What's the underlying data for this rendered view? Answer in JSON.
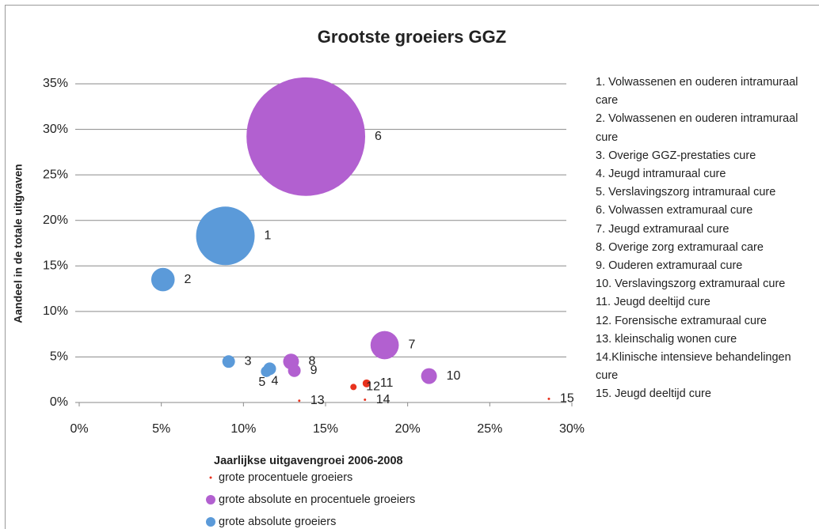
{
  "chart_data": {
    "type": "bubble",
    "title": "Grootste groeiers GGZ",
    "x_label": "Jaarlijkse uitgavengroei 2006-2008",
    "y_label": "Aandeel in de totale uitgvaven",
    "xlim": [
      0,
      30
    ],
    "ylim": [
      0,
      35
    ],
    "xticks": [
      {
        "value": 0,
        "label": "0%"
      },
      {
        "value": 5,
        "label": "5%"
      },
      {
        "value": 10,
        "label": "10%"
      },
      {
        "value": 15,
        "label": "15%"
      },
      {
        "value": 20,
        "label": "20%"
      },
      {
        "value": 25,
        "label": "25%"
      },
      {
        "value": 30,
        "label": "30%"
      }
    ],
    "yticks": [
      {
        "value": 0,
        "label": "0%"
      },
      {
        "value": 5,
        "label": "5%"
      },
      {
        "value": 10,
        "label": "10%"
      },
      {
        "value": 15,
        "label": "15%"
      },
      {
        "value": 20,
        "label": "20%"
      },
      {
        "value": 25,
        "label": "25%"
      },
      {
        "value": 30,
        "label": "30%"
      },
      {
        "value": 35,
        "label": "35%"
      }
    ],
    "grid": true,
    "series": [
      {
        "name": "grote procentuele groeiers",
        "color": "#e8321e",
        "x": [
          17.5,
          16.7,
          13.4,
          17.4,
          28.6
        ],
        "values": [
          2.1,
          1.7,
          0.2,
          0.3,
          0.4
        ],
        "sizes": [
          2.5,
          1.6,
          0.2,
          0.2,
          0.2
        ],
        "labels": [
          "11",
          "12",
          "13",
          "14",
          "15"
        ]
      },
      {
        "name": "grote absolute en procentuele groeiers",
        "color": "#b260d0",
        "x": [
          13.8,
          18.6,
          12.9,
          13.1,
          21.3
        ],
        "values": [
          29.2,
          6.3,
          4.5,
          3.5,
          2.9
        ],
        "sizes": [
          562,
          32,
          10,
          6.4,
          10
        ],
        "labels": [
          "6",
          "7",
          "8",
          "9",
          "10"
        ]
      },
      {
        "name": "grote absolute groeiers",
        "color": "#5b9ad9",
        "x": [
          8.9,
          5.1,
          9.1,
          11.6,
          11.4
        ],
        "values": [
          18.3,
          13.5,
          4.5,
          3.7,
          3.4
        ],
        "sizes": [
          137,
          22,
          6.4,
          6.4,
          4.9
        ],
        "labels": [
          "1",
          "2",
          "3",
          "4",
          "5"
        ]
      }
    ],
    "notes": [
      "1. Volwassenen en ouderen intramuraal care",
      "2. Volwassenen en ouderen intramuraal cure",
      "3. Overige GGZ-prestaties cure",
      "4.  Jeugd intramuraal cure",
      "5. Verslavingszorg intramuraal cure",
      "6. Volwassen extramuraal cure",
      "7. Jeugd extramuraal cure",
      "8. Overige zorg extramuraal care",
      "9. Ouderen extramuraal cure",
      "10. Verslavingszorg extramuraal cure",
      "11. Jeugd deeltijd cure",
      "12. Forensische extramuraal cure",
      "13. kleinschalig wonen cure",
      "14.Klinische intensieve behandelingen cure",
      "15. Jeugd deeltijd cure"
    ]
  }
}
